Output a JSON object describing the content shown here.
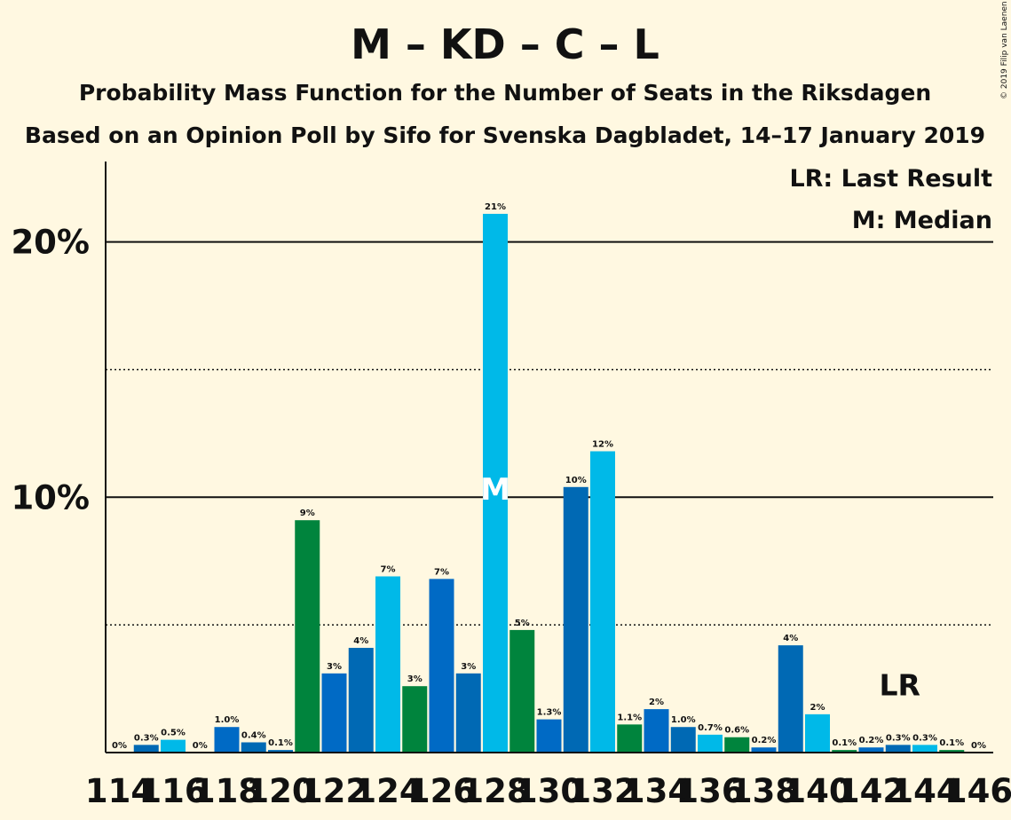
{
  "chart_data": {
    "type": "bar",
    "title": "M – KD – C – L",
    "subtitle": "Probability Mass Function for the Number of Seats in the Riksdagen",
    "subtitle2": "Based on an Opinion Poll by Sifo for Svenska Dagbladet, 14–17 January 2019",
    "copyright": "© 2019 Filip van Laenen",
    "legend": {
      "last_result": "LR: Last Result",
      "median": "M: Median",
      "placement": "top-right"
    },
    "xlabel": "",
    "ylabel": "",
    "ylim": [
      0,
      23
    ],
    "y_ticks": [
      {
        "value": 10,
        "label": "10%"
      },
      {
        "value": 20,
        "label": "20%"
      }
    ],
    "dotted_lines": [
      5,
      15
    ],
    "x_tick_labels": [
      "114",
      "116",
      "118",
      "120",
      "122",
      "124",
      "126",
      "128",
      "130",
      "132",
      "134",
      "136",
      "138",
      "140",
      "142",
      "144",
      "146"
    ],
    "x": [
      114,
      115,
      116,
      117,
      118,
      119,
      120,
      121,
      122,
      123,
      124,
      125,
      126,
      127,
      128,
      129,
      130,
      131,
      132,
      133,
      134,
      135,
      136,
      137,
      138,
      139,
      140,
      141,
      142,
      143,
      144,
      145,
      146
    ],
    "values": [
      0,
      0.3,
      0.5,
      0,
      1.0,
      0.4,
      0.1,
      9.1,
      3.1,
      4.1,
      6.9,
      2.6,
      6.8,
      3.1,
      21.1,
      4.8,
      1.3,
      10.4,
      11.8,
      1.1,
      1.7,
      1.0,
      0.7,
      0.6,
      0.2,
      4.2,
      1.5,
      0.1,
      0.2,
      0.3,
      0.3,
      0.1,
      0
    ],
    "labels": [
      "0%",
      "0.3%",
      "0.5%",
      "0%",
      "1.0%",
      "0.4%",
      "0.1%",
      "9%",
      "3%",
      "4%",
      "7%",
      "3%",
      "7%",
      "3%",
      "21%",
      "5%",
      "1.3%",
      "10%",
      "12%",
      "1.1%",
      "2%",
      "1.0%",
      "0.7%",
      "0.6%",
      "0.2%",
      "4%",
      "2%",
      "0.1%",
      "0.2%",
      "0.3%",
      "0.3%",
      "0.1%",
      "0%"
    ],
    "bar_colors": [
      "#0069b4",
      "#0069b4",
      "#00b9e8",
      "#0069b4",
      "#006ac5",
      "#0069b4",
      "#0069b4",
      "#00843d",
      "#006ac5",
      "#0069b4",
      "#00b9e8",
      "#00843d",
      "#006ac5",
      "#0069b4",
      "#00b9e8",
      "#00843d",
      "#006ac5",
      "#0069b4",
      "#00b9e8",
      "#00843d",
      "#006ac5",
      "#0069b4",
      "#00b9e8",
      "#00843d",
      "#006ac5",
      "#0069b4",
      "#00b9e8",
      "#00843d",
      "#006ac5",
      "#0069b4",
      "#00b9e8",
      "#00843d",
      "#006ac5"
    ],
    "median": {
      "x": 128,
      "label": "M"
    },
    "last_result": {
      "x": 143,
      "label": "LR"
    }
  }
}
